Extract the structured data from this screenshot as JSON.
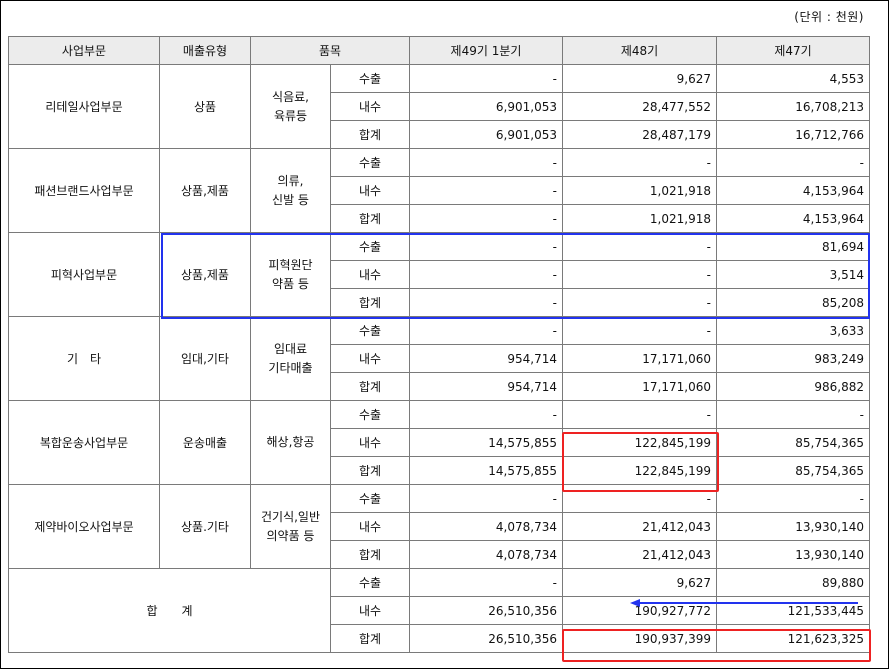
{
  "unit_label": "(단위 : 천원)",
  "headers": {
    "segment": "사업부문",
    "sales_type": "매출유형",
    "item": "품목",
    "p1": "제49기 1분기",
    "p2": "제48기",
    "p3": "제47기"
  },
  "sub_labels": [
    "수출",
    "내수",
    "합계"
  ],
  "segments": [
    {
      "name": "리테일사업부문",
      "type": "상품",
      "item": [
        "식음료,",
        "육류등"
      ],
      "rows": [
        [
          "-",
          "9,627",
          "4,553"
        ],
        [
          "6,901,053",
          "28,477,552",
          "16,708,213"
        ],
        [
          "6,901,053",
          "28,487,179",
          "16,712,766"
        ]
      ]
    },
    {
      "name": "패션브랜드사업부문",
      "type": "상품,제품",
      "item": [
        "의류,",
        "신발 등"
      ],
      "rows": [
        [
          "-",
          "-",
          "-"
        ],
        [
          "-",
          "1,021,918",
          "4,153,964"
        ],
        [
          "-",
          "1,021,918",
          "4,153,964"
        ]
      ]
    },
    {
      "name": "피혁사업부문",
      "type": "상품,제품",
      "item": [
        "피혁원단",
        "약품 등"
      ],
      "rows": [
        [
          "-",
          "-",
          "81,694"
        ],
        [
          "-",
          "-",
          "3,514"
        ],
        [
          "-",
          "-",
          "85,208"
        ]
      ]
    },
    {
      "name": "기　타",
      "type": "임대,기타",
      "item": [
        "임대료",
        "기타매출"
      ],
      "rows": [
        [
          "-",
          "-",
          "3,633"
        ],
        [
          "954,714",
          "17,171,060",
          "983,249"
        ],
        [
          "954,714",
          "17,171,060",
          "986,882"
        ]
      ]
    },
    {
      "name": "복합운송사업부문",
      "type": "운송매출",
      "item": [
        "해상,항공"
      ],
      "rows": [
        [
          "-",
          "-",
          "-"
        ],
        [
          "14,575,855",
          "122,845,199",
          "85,754,365"
        ],
        [
          "14,575,855",
          "122,845,199",
          "85,754,365"
        ]
      ]
    },
    {
      "name": "제약바이오사업부문",
      "type": "상품.기타",
      "item": [
        "건기식,일반",
        "의약품 등"
      ],
      "rows": [
        [
          "-",
          "-",
          "-"
        ],
        [
          "4,078,734",
          "21,412,043",
          "13,930,140"
        ],
        [
          "4,078,734",
          "21,412,043",
          "13,930,140"
        ]
      ]
    }
  ],
  "total": {
    "label": "합　　계",
    "rows": [
      [
        "-",
        "9,627",
        "89,880"
      ],
      [
        "26,510,356",
        "190,927,772",
        "121,533,445"
      ],
      [
        "26,510,356",
        "190,937,399",
        "121,623,325"
      ]
    ]
  },
  "annotations": {
    "blue_box_color": "#2233ee",
    "red_box_color": "#ee2222",
    "arrow_color": "#2233ee"
  }
}
